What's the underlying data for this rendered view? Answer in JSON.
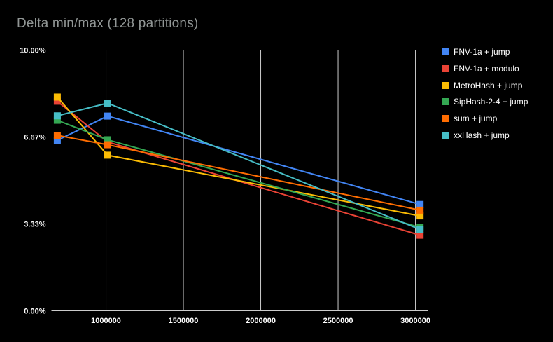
{
  "header": {
    "title": "Delta min/max (128 partitions)"
  },
  "styles": {
    "background": "#000000",
    "title_color": "#919695",
    "axis_text_color": "#ffffff",
    "gridline_color": "#cbcbcb",
    "legend_text_color": "#ffffff"
  },
  "chart_data": {
    "type": "line",
    "title": "Delta min/max (128 partitions)",
    "marker": "square",
    "grid": true,
    "legend_position": "right",
    "x": [
      685000,
      1010000,
      3030000
    ],
    "series": [
      {
        "name": "FNV-1a + jump",
        "color": "#4285f4",
        "values": [
          6.54,
          7.47,
          4.08
        ]
      },
      {
        "name": "FNV-1a + modulo",
        "color": "#ea4335",
        "values": [
          8.04,
          6.48,
          2.9
        ]
      },
      {
        "name": "MetroHash + jump",
        "color": "#fbbc04",
        "values": [
          8.2,
          5.97,
          3.64
        ]
      },
      {
        "name": "SipHash-2-4 + jump",
        "color": "#34a853",
        "values": [
          7.31,
          6.56,
          3.2
        ]
      },
      {
        "name": "sum + jump",
        "color": "#ff6d01",
        "values": [
          6.73,
          6.37,
          3.86
        ]
      },
      {
        "name": "xxHash + jump",
        "color": "#46bdc6",
        "values": [
          7.48,
          7.97,
          3.12
        ]
      }
    ],
    "x_ticks": [
      {
        "value": 1000000,
        "label": "1000000"
      },
      {
        "value": 1500000,
        "label": "1500000"
      },
      {
        "value": 2000000,
        "label": "2000000"
      },
      {
        "value": 2500000,
        "label": "2500000"
      },
      {
        "value": 3000000,
        "label": "3000000"
      }
    ],
    "y_ticks": [
      {
        "value": 0,
        "label": "0.00%"
      },
      {
        "value": 3.3333,
        "label": "3.33%"
      },
      {
        "value": 6.6667,
        "label": "6.67%"
      },
      {
        "value": 10,
        "label": "10.00%"
      }
    ],
    "xlim": [
      647000,
      3079000
    ],
    "ylim": [
      0,
      10
    ]
  }
}
